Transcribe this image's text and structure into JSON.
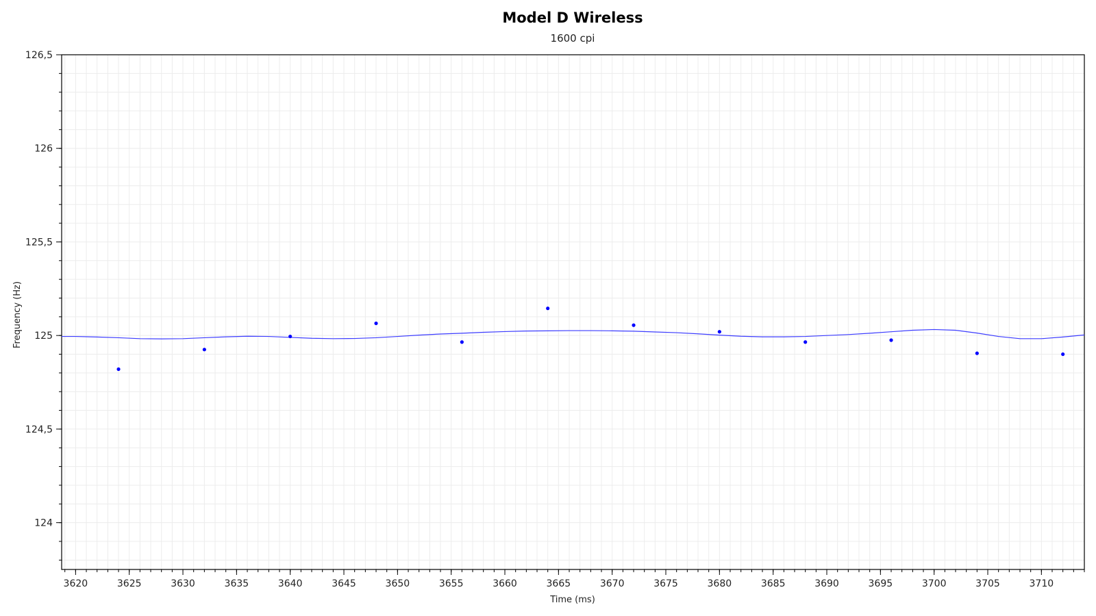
{
  "chart_data": {
    "type": "scatter",
    "title": "Model D Wireless",
    "subtitle": "1600 cpi",
    "xlabel": "Time (ms)",
    "ylabel": "Frequency (Hz)",
    "xlim": [
      3618.7,
      3714.0
    ],
    "ylim": [
      123.75,
      126.5
    ],
    "x_ticks": [
      3620,
      3625,
      3630,
      3635,
      3640,
      3645,
      3650,
      3655,
      3660,
      3665,
      3670,
      3675,
      3680,
      3685,
      3690,
      3695,
      3700,
      3705,
      3710
    ],
    "x_tick_labels": [
      "3620",
      "3625",
      "3630",
      "3635",
      "3640",
      "3645",
      "3650",
      "3655",
      "3660",
      "3665",
      "3670",
      "3675",
      "3680",
      "3685",
      "3690",
      "3695",
      "3700",
      "3705",
      "3710"
    ],
    "y_ticks": [
      124,
      124.5,
      125,
      125.5,
      126,
      126.5
    ],
    "y_tick_labels": [
      "124",
      "124,5",
      "125",
      "125,5",
      "126",
      "126,5"
    ],
    "grid": true,
    "colors": {
      "points": "#0000ff",
      "line": "#3b3bff",
      "grid": "#ececec",
      "axis": "#000000"
    },
    "series": [
      {
        "type": "scatter",
        "x": [
          3624,
          3632,
          3640,
          3648,
          3656,
          3664,
          3672,
          3680,
          3688,
          3696,
          3704,
          3712
        ],
        "y": [
          124.82,
          124.925,
          124.995,
          125.065,
          124.965,
          125.145,
          125.055,
          125.02,
          124.965,
          124.975,
          124.905,
          124.9
        ]
      },
      {
        "type": "line",
        "x": [
          3618.7,
          3620,
          3622,
          3624,
          3626,
          3628,
          3630,
          3632,
          3634,
          3636,
          3638,
          3640,
          3642,
          3644,
          3646,
          3648,
          3650,
          3652,
          3654,
          3656,
          3658,
          3660,
          3662,
          3664,
          3666,
          3668,
          3670,
          3672,
          3674,
          3676,
          3678,
          3680,
          3682,
          3684,
          3686,
          3688,
          3690,
          3692,
          3694,
          3696,
          3698,
          3700,
          3702,
          3704,
          3706,
          3708,
          3710,
          3712,
          3714
        ],
        "y": [
          124.995,
          124.995,
          124.992,
          124.988,
          124.983,
          124.982,
          124.983,
          124.988,
          124.993,
          124.996,
          124.995,
          124.99,
          124.985,
          124.983,
          124.984,
          124.988,
          124.995,
          125.002,
          125.008,
          125.012,
          125.017,
          125.021,
          125.024,
          125.025,
          125.026,
          125.026,
          125.025,
          125.023,
          125.019,
          125.015,
          125.009,
          125.002,
          124.996,
          124.993,
          124.993,
          124.995,
          125.0,
          125.005,
          125.012,
          125.02,
          125.028,
          125.032,
          125.028,
          125.013,
          124.995,
          124.983,
          124.983,
          124.992,
          125.003
        ]
      }
    ]
  }
}
